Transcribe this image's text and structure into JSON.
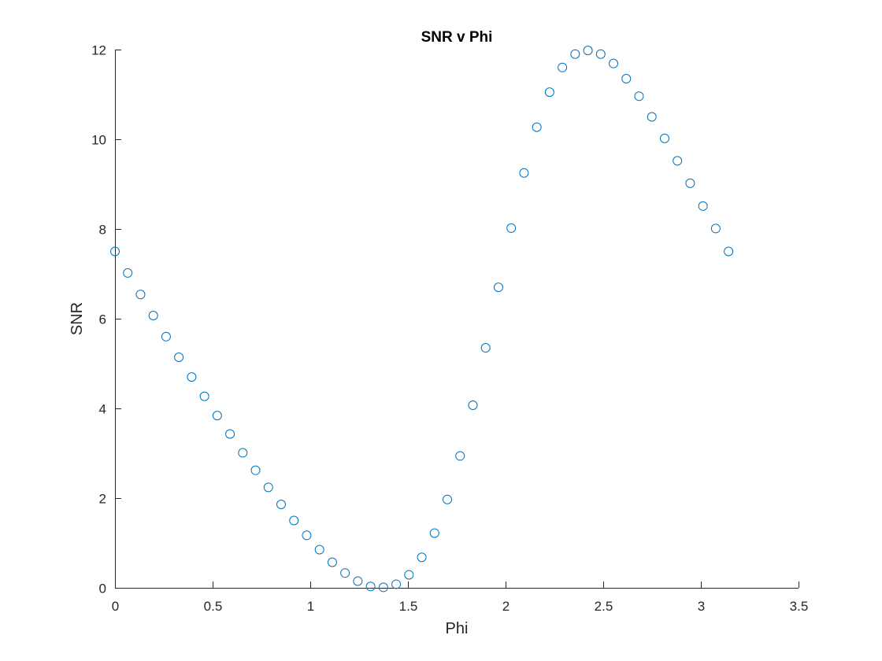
{
  "chart_data": {
    "type": "scatter",
    "title": "SNR v Phi",
    "xlabel": "Phi",
    "ylabel": "SNR",
    "xlim": [
      0,
      3.5
    ],
    "ylim": [
      0,
      12
    ],
    "xticks": [
      "0",
      "0.5",
      "1",
      "1.5",
      "2",
      "2.5",
      "3",
      "3.5"
    ],
    "yticks": [
      "0",
      "2",
      "4",
      "6",
      "8",
      "10",
      "12"
    ],
    "grid": false,
    "marker": "open-circle",
    "colors": {
      "marker": "#0072BD",
      "axis": "#262626"
    },
    "series": [
      {
        "x": [
          0,
          0.0654,
          0.1309,
          0.1963,
          0.2618,
          0.3272,
          0.3927,
          0.4581,
          0.5236,
          0.589,
          0.6545,
          0.7199,
          0.7854,
          0.8508,
          0.9163,
          0.9817,
          1.0472,
          1.1126,
          1.1781,
          1.2435,
          1.309,
          1.3744,
          1.4399,
          1.5053,
          1.5708,
          1.6362,
          1.7017,
          1.7671,
          1.8326,
          1.898,
          1.9635,
          2.0289,
          2.0944,
          2.1598,
          2.2253,
          2.2907,
          2.3562,
          2.4216,
          2.4871,
          2.5525,
          2.618,
          2.6834,
          2.7489,
          2.8143,
          2.8798,
          2.9452,
          3.0107,
          3.0761,
          3.1416
        ],
        "y": [
          7.5,
          7.02,
          6.54,
          6.07,
          5.6,
          5.14,
          4.7,
          4.27,
          3.84,
          3.43,
          3.01,
          2.62,
          2.24,
          1.86,
          1.5,
          1.17,
          0.85,
          0.57,
          0.33,
          0.15,
          0.03,
          0.01,
          0.08,
          0.29,
          0.68,
          1.22,
          1.97,
          2.94,
          4.07,
          5.35,
          6.7,
          8.02,
          9.25,
          10.27,
          11.05,
          11.6,
          11.9,
          11.98,
          11.9,
          11.69,
          11.35,
          10.96,
          10.5,
          10.02,
          9.52,
          9.02,
          8.51,
          8.01,
          7.5
        ]
      }
    ]
  }
}
